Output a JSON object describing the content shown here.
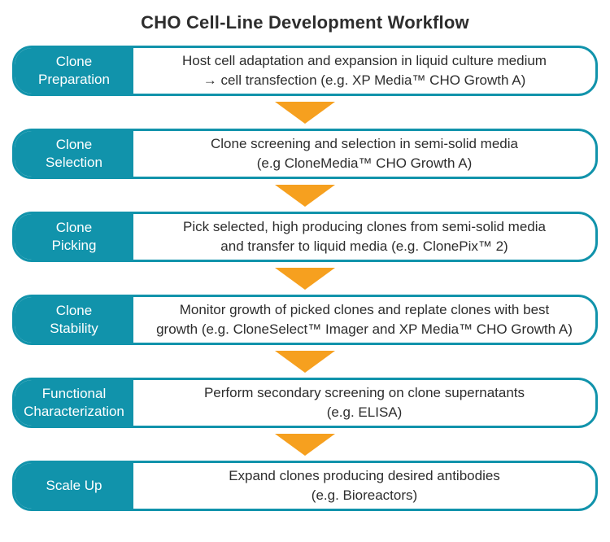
{
  "title": "CHO Cell-Line Development Workflow",
  "colors": {
    "teal": "#1193AB",
    "orange": "#F6A01F",
    "text_dark": "#2D2D2D",
    "label_text": "#FFFFFF"
  },
  "steps": [
    {
      "label": "Clone\nPreparation",
      "description": "Host cell adaptation and expansion in liquid culture medium\n→ cell transfection (e.g. XP Media™ CHO Growth A)"
    },
    {
      "label": "Clone\nSelection",
      "description": "Clone screening and selection in semi-solid media\n(e.g CloneMedia™ CHO Growth A)"
    },
    {
      "label": "Clone\nPicking",
      "description": "Pick selected, high producing clones from semi-solid media\nand transfer to liquid media (e.g. ClonePix™ 2)"
    },
    {
      "label": "Clone\nStability",
      "description": "Monitor growth of picked clones and replate clones with best\ngrowth (e.g. CloneSelect™ Imager and XP Media™ CHO Growth A)"
    },
    {
      "label": "Functional\nCharacterization",
      "description": "Perform secondary screening on clone supernatants\n(e.g. ELISA)"
    },
    {
      "label": "Scale Up",
      "description": "Expand clones producing desired antibodies\n(e.g. Bioreactors)"
    }
  ]
}
